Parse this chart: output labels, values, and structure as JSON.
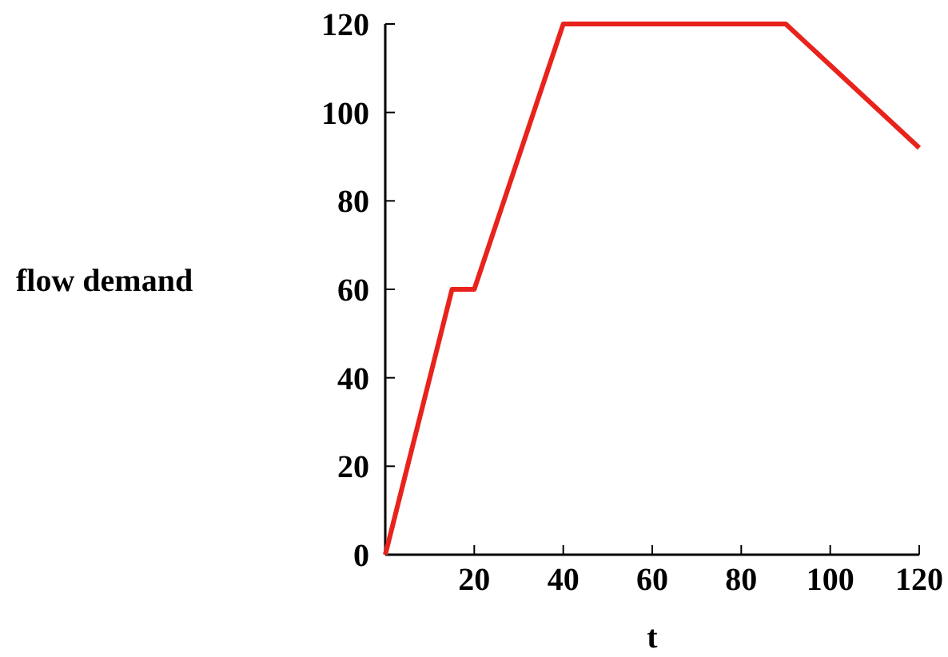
{
  "chart_data": {
    "type": "line",
    "xlabel": "t",
    "ylabel": "flow demand",
    "x": [
      0,
      15,
      20,
      40,
      90,
      120
    ],
    "series": [
      {
        "color": "#e8231c",
        "values": [
          0,
          60,
          60,
          120,
          120,
          92
        ]
      }
    ],
    "xlim": [
      0,
      120
    ],
    "ylim": [
      0,
      120
    ],
    "xticks": [
      20,
      40,
      60,
      80,
      100,
      120
    ],
    "yticks": [
      0,
      20,
      40,
      60,
      80,
      100,
      120
    ],
    "grid": false
  }
}
